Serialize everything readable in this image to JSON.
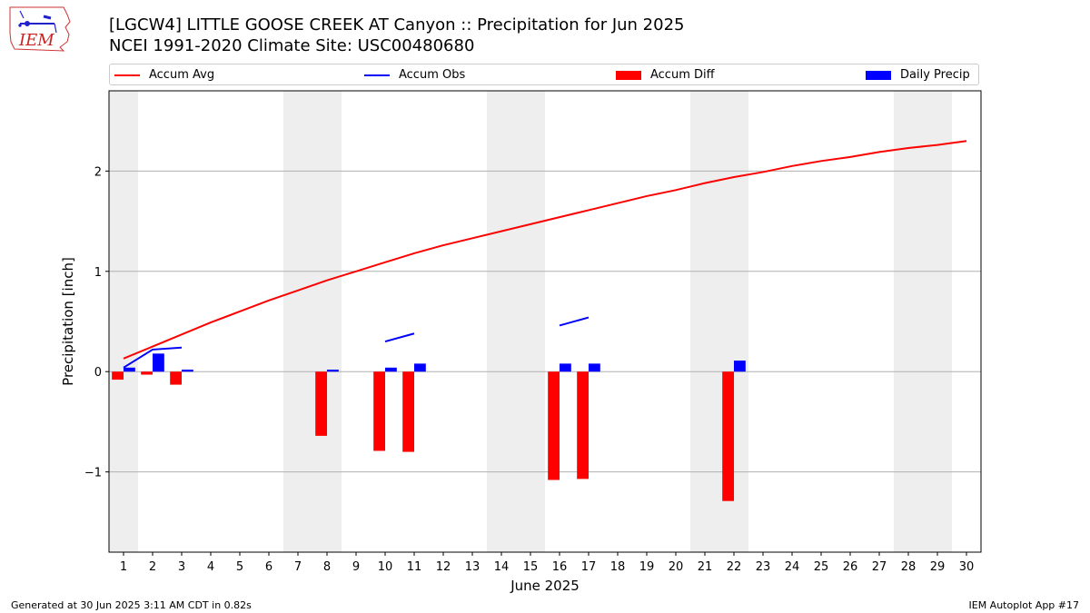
{
  "header": {
    "logo_text": "IEM",
    "title_line1": "[LGCW4] LITTLE GOOSE CREEK  AT Canyon :: Precipitation for Jun 2025",
    "title_line2": "NCEI 1991-2020 Climate Site: USC00480680"
  },
  "footer": {
    "generated": "Generated at 30 Jun 2025 3:11 AM CDT in 0.82s",
    "app": "IEM Autoplot App #17"
  },
  "colors": {
    "avg": "#ff0000",
    "obs": "#0000ff",
    "diff": "#ff0000",
    "daily": "#0000ff",
    "weekend": "#eeeeee",
    "grid": "#b0b0b0"
  },
  "chart_data": {
    "type": "bar",
    "xlabel": "June 2025",
    "ylabel": "Precipitation [inch]",
    "xlim": [
      0.5,
      30.5
    ],
    "ylim": [
      -1.8,
      2.8
    ],
    "grid": "y",
    "legend_position": "top",
    "x": [
      1,
      2,
      3,
      4,
      5,
      6,
      7,
      8,
      9,
      10,
      11,
      12,
      13,
      14,
      15,
      16,
      17,
      18,
      19,
      20,
      21,
      22,
      23,
      24,
      25,
      26,
      27,
      28,
      29,
      30
    ],
    "yticks": [
      -1,
      0,
      1,
      2
    ],
    "ytick_labels": [
      "−1",
      "0",
      "1",
      "2"
    ],
    "weekend_bands": [
      [
        0.5,
        1.5
      ],
      [
        6.5,
        8.5
      ],
      [
        13.5,
        15.5
      ],
      [
        20.5,
        22.5
      ],
      [
        27.5,
        29.5
      ]
    ],
    "legend": [
      {
        "label": "Accum Avg",
        "kind": "line",
        "color": "#ff0000"
      },
      {
        "label": "Accum Obs",
        "kind": "line",
        "color": "#0000ff"
      },
      {
        "label": "Accum Diff",
        "kind": "bar",
        "color": "#ff0000"
      },
      {
        "label": "Daily Precip",
        "kind": "bar",
        "color": "#0000ff"
      }
    ],
    "series": [
      {
        "name": "Accum Avg",
        "type": "line",
        "color": "#ff0000",
        "values": [
          0.13,
          0.25,
          0.37,
          0.49,
          0.6,
          0.71,
          0.81,
          0.91,
          1.0,
          1.09,
          1.18,
          1.26,
          1.33,
          1.4,
          1.47,
          1.54,
          1.61,
          1.68,
          1.75,
          1.81,
          1.88,
          1.94,
          1.99,
          2.05,
          2.1,
          2.14,
          2.19,
          2.23,
          2.26,
          2.3
        ]
      },
      {
        "name": "Accum Obs",
        "type": "line",
        "color": "#0000ff",
        "values": [
          0.04,
          0.22,
          0.24,
          null,
          null,
          null,
          null,
          null,
          null,
          0.3,
          0.38,
          null,
          null,
          null,
          null,
          0.46,
          0.54,
          null,
          null,
          null,
          null,
          null,
          null,
          null,
          null,
          null,
          null,
          null,
          null,
          null
        ]
      },
      {
        "name": "Accum Diff",
        "type": "bar",
        "color": "#ff0000",
        "values": [
          -0.08,
          -0.03,
          -0.13,
          null,
          null,
          null,
          null,
          -0.64,
          null,
          -0.79,
          -0.8,
          null,
          null,
          null,
          null,
          -1.08,
          -1.07,
          null,
          null,
          null,
          null,
          -1.29,
          null,
          null,
          null,
          null,
          null,
          null,
          null,
          null
        ]
      },
      {
        "name": "Daily Precip",
        "type": "bar",
        "color": "#0000ff",
        "values": [
          0.04,
          0.18,
          0.02,
          null,
          null,
          null,
          null,
          0.02,
          null,
          0.04,
          0.08,
          null,
          null,
          null,
          null,
          0.08,
          0.08,
          null,
          null,
          null,
          null,
          0.11,
          null,
          null,
          null,
          null,
          null,
          null,
          null,
          null
        ]
      }
    ]
  }
}
